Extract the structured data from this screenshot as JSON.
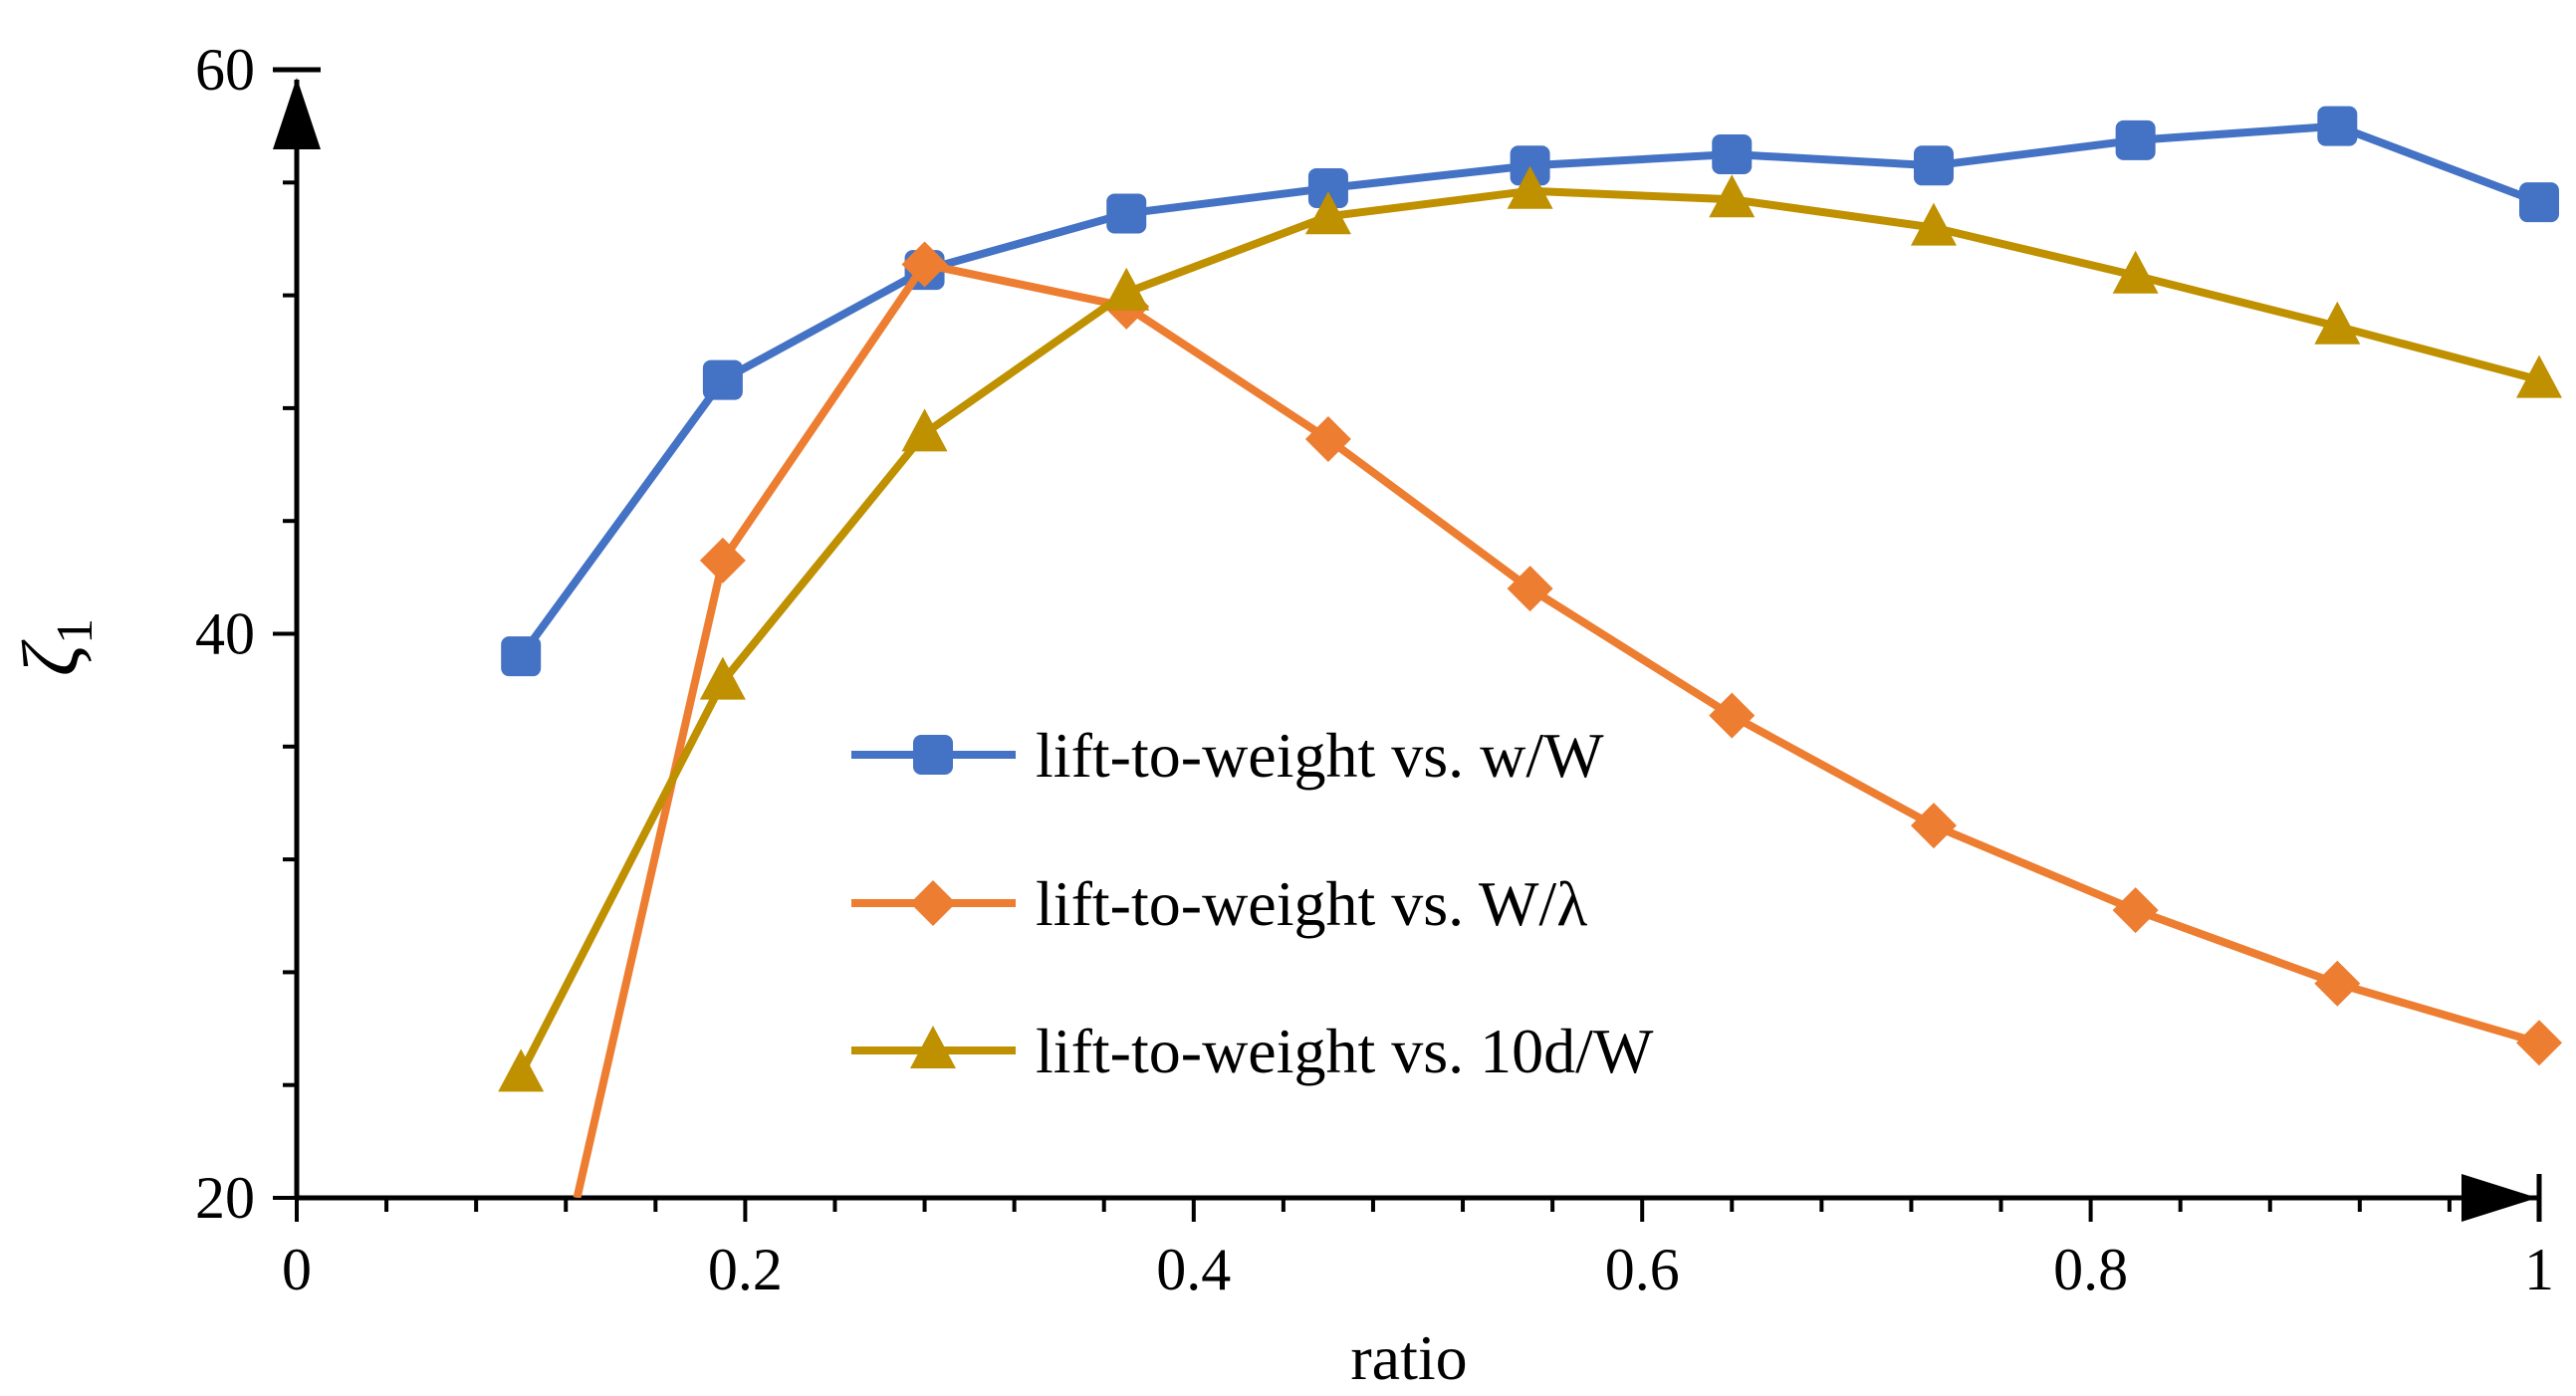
{
  "chart_data": {
    "type": "line",
    "title": "",
    "xlabel": "ratio",
    "ylabel": "ζ",
    "ylabel_subscript": "1",
    "xlim": [
      0,
      1
    ],
    "ylim": [
      20,
      60
    ],
    "xticks": [
      0,
      0.2,
      0.4,
      0.6,
      0.8,
      1
    ],
    "xtick_labels": [
      "0",
      "0.2",
      "0.4",
      "0.6",
      "0.8",
      "1"
    ],
    "yticks": [
      20,
      40,
      60
    ],
    "ytick_labels": [
      "20",
      "40",
      "60"
    ],
    "legend_position": "center",
    "series": [
      {
        "name": "lift-to-weight vs. w/W",
        "color": "#4472C4",
        "marker": "square",
        "x": [
          0.1,
          0.19,
          0.28,
          0.37,
          0.46,
          0.55,
          0.64,
          0.73,
          0.82,
          0.91,
          1.0
        ],
        "values": [
          39.2,
          49.0,
          52.9,
          54.9,
          55.8,
          56.6,
          57.0,
          56.6,
          57.5,
          58.0,
          55.3
        ]
      },
      {
        "name": "lift-to-weight vs. W/λ",
        "color": "#ED7D31",
        "marker": "diamond",
        "x": [
          0.125,
          0.19,
          0.28,
          0.37,
          0.46,
          0.55,
          0.64,
          0.73,
          0.82,
          0.91,
          1.0
        ],
        "values": [
          20.0,
          42.6,
          53.1,
          51.6,
          46.9,
          41.6,
          37.1,
          33.2,
          30.2,
          27.6,
          25.5
        ]
      },
      {
        "name": "lift-to-weight vs. 10d/W",
        "color": "#BF9000",
        "marker": "triangle",
        "x": [
          0.1,
          0.19,
          0.28,
          0.37,
          0.46,
          0.55,
          0.64,
          0.73,
          0.82,
          0.91,
          1.0
        ],
        "values": [
          24.4,
          38.3,
          47.1,
          52.1,
          54.8,
          55.7,
          55.4,
          54.4,
          52.7,
          50.9,
          49.0
        ]
      }
    ]
  }
}
